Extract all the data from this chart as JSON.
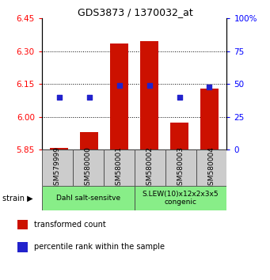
{
  "title": "GDS3873 / 1370032_at",
  "samples": [
    "GSM579999",
    "GSM580000",
    "GSM580001",
    "GSM580002",
    "GSM580003",
    "GSM580004"
  ],
  "bar_values": [
    5.858,
    5.93,
    6.335,
    6.345,
    5.975,
    6.13
  ],
  "blue_values": [
    6.09,
    6.09,
    6.145,
    6.145,
    6.09,
    6.135
  ],
  "y_min": 5.85,
  "y_max": 6.45,
  "y_ticks": [
    5.85,
    6.0,
    6.15,
    6.3,
    6.45
  ],
  "pct_ticks": [
    0,
    25,
    50,
    75,
    100
  ],
  "bar_color": "#cc1100",
  "blue_color": "#2222cc",
  "group1_label": "Dahl salt-sensitve",
  "group2_label": "S.LEW(10)x12x2x3x5\ncongenic",
  "group_color": "#88ee88",
  "strain_label": "strain",
  "legend_red_label": "transformed count",
  "legend_blue_label": "percentile rank within the sample",
  "bar_bottom": 5.85,
  "xtick_bg": "#cccccc",
  "spine_color": "#333333"
}
